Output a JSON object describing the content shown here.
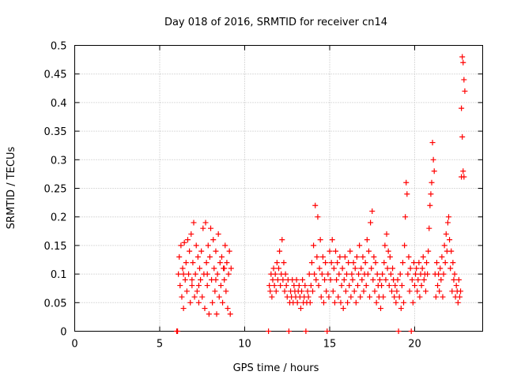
{
  "chart_data": {
    "type": "scatter",
    "title": "Day 018 of 2016, SRMTID for receiver cn14",
    "xlabel": "GPS time / hours",
    "ylabel": "SRMTID / TECUs",
    "xlim": [
      0,
      24
    ],
    "ylim": [
      0,
      0.5
    ],
    "grid": true,
    "marker": "+",
    "series_color": "#ff0000",
    "x_ticks": [
      {
        "value": 0,
        "label": "0"
      },
      {
        "value": 5,
        "label": "5"
      },
      {
        "value": 10,
        "label": "10"
      },
      {
        "value": 15,
        "label": "15"
      },
      {
        "value": 20,
        "label": "20"
      }
    ],
    "y_ticks": [
      {
        "value": 0,
        "label": "0"
      },
      {
        "value": 0.05,
        "label": "0.05"
      },
      {
        "value": 0.1,
        "label": "0.1"
      },
      {
        "value": 0.15,
        "label": "0.15"
      },
      {
        "value": 0.2,
        "label": "0.2"
      },
      {
        "value": 0.25,
        "label": "0.25"
      },
      {
        "value": 0.3,
        "label": "0.3"
      },
      {
        "value": 0.35,
        "label": "0.35"
      },
      {
        "value": 0.4,
        "label": "0.4"
      },
      {
        "value": 0.45,
        "label": "0.45"
      },
      {
        "value": 0.5,
        "label": "0.5"
      }
    ],
    "series": [
      {
        "name": "SRMTID",
        "points": [
          [
            6.0,
            0.0
          ],
          [
            6.05,
            0.0
          ],
          [
            6.1,
            0.1
          ],
          [
            6.15,
            0.13
          ],
          [
            6.2,
            0.08
          ],
          [
            6.25,
            0.15
          ],
          [
            6.3,
            0.06
          ],
          [
            6.35,
            0.11
          ],
          [
            6.4,
            0.04
          ],
          [
            6.45,
            0.155
          ],
          [
            6.5,
            0.09
          ],
          [
            6.55,
            0.12
          ],
          [
            6.6,
            0.07
          ],
          [
            6.65,
            0.16
          ],
          [
            6.7,
            0.1
          ],
          [
            6.75,
            0.14
          ],
          [
            6.8,
            0.05
          ],
          [
            6.85,
            0.17
          ],
          [
            6.9,
            0.08
          ],
          [
            6.95,
            0.12
          ],
          [
            7.0,
            0.19
          ],
          [
            7.05,
            0.06
          ],
          [
            7.1,
            0.1
          ],
          [
            7.15,
            0.15
          ],
          [
            7.2,
            0.07
          ],
          [
            7.25,
            0.13
          ],
          [
            7.3,
            0.05
          ],
          [
            7.35,
            0.11
          ],
          [
            7.4,
            0.09
          ],
          [
            7.45,
            0.14
          ],
          [
            7.5,
            0.06
          ],
          [
            7.55,
            0.18
          ],
          [
            7.6,
            0.1
          ],
          [
            7.65,
            0.04
          ],
          [
            7.7,
            0.19
          ],
          [
            7.75,
            0.12
          ],
          [
            7.8,
            0.08
          ],
          [
            7.85,
            0.15
          ],
          [
            7.9,
            0.03
          ],
          [
            7.95,
            0.13
          ],
          [
            8.0,
            0.18
          ],
          [
            8.05,
            0.09
          ],
          [
            8.1,
            0.05
          ],
          [
            8.15,
            0.16
          ],
          [
            8.2,
            0.11
          ],
          [
            8.25,
            0.07
          ],
          [
            8.3,
            0.14
          ],
          [
            8.35,
            0.03
          ],
          [
            8.4,
            0.1
          ],
          [
            8.45,
            0.17
          ],
          [
            8.5,
            0.06
          ],
          [
            8.55,
            0.12
          ],
          [
            8.6,
            0.08
          ],
          [
            8.65,
            0.13
          ],
          [
            8.7,
            0.05
          ],
          [
            8.75,
            0.11
          ],
          [
            8.8,
            0.09
          ],
          [
            8.85,
            0.15
          ],
          [
            8.9,
            0.07
          ],
          [
            8.95,
            0.12
          ],
          [
            9.0,
            0.04
          ],
          [
            9.05,
            0.1
          ],
          [
            9.1,
            0.14
          ],
          [
            9.15,
            0.03
          ],
          [
            9.2,
            0.11
          ],
          [
            6.4,
            0.1
          ],
          [
            6.9,
            0.09
          ],
          [
            7.3,
            0.08
          ],
          [
            7.8,
            0.1
          ],
          [
            8.3,
            0.09
          ],
          [
            8.8,
            0.11
          ],
          [
            11.4,
            0.0
          ],
          [
            11.45,
            0.08
          ],
          [
            11.5,
            0.07
          ],
          [
            11.55,
            0.1
          ],
          [
            11.6,
            0.06
          ],
          [
            11.65,
            0.09
          ],
          [
            11.7,
            0.11
          ],
          [
            11.75,
            0.08
          ],
          [
            11.8,
            0.1
          ],
          [
            11.85,
            0.07
          ],
          [
            11.9,
            0.12
          ],
          [
            11.95,
            0.09
          ],
          [
            12.0,
            0.11
          ],
          [
            12.05,
            0.14
          ],
          [
            12.1,
            0.08
          ],
          [
            12.15,
            0.1
          ],
          [
            12.2,
            0.16
          ],
          [
            12.25,
            0.09
          ],
          [
            12.3,
            0.12
          ],
          [
            12.35,
            0.07
          ],
          [
            12.4,
            0.1
          ],
          [
            12.45,
            0.08
          ],
          [
            12.5,
            0.06
          ],
          [
            12.55,
            0.09
          ],
          [
            12.6,
            0.0
          ],
          [
            12.65,
            0.05
          ],
          [
            12.7,
            0.07
          ],
          [
            12.75,
            0.06
          ],
          [
            12.8,
            0.09
          ],
          [
            12.85,
            0.05
          ],
          [
            12.9,
            0.08
          ],
          [
            12.95,
            0.07
          ],
          [
            13.0,
            0.06
          ],
          [
            13.05,
            0.09
          ],
          [
            13.1,
            0.05
          ],
          [
            13.15,
            0.07
          ],
          [
            13.2,
            0.08
          ],
          [
            13.25,
            0.06
          ],
          [
            13.3,
            0.04
          ],
          [
            13.35,
            0.07
          ],
          [
            13.4,
            0.09
          ],
          [
            13.45,
            0.05
          ],
          [
            13.5,
            0.06
          ],
          [
            13.55,
            0.08
          ],
          [
            13.6,
            0.0
          ],
          [
            13.65,
            0.05
          ],
          [
            13.7,
            0.07
          ],
          [
            13.75,
            0.06
          ],
          [
            13.8,
            0.1
          ],
          [
            13.85,
            0.05
          ],
          [
            13.9,
            0.08
          ],
          [
            13.95,
            0.12
          ],
          [
            14.0,
            0.07
          ],
          [
            14.05,
            0.15
          ],
          [
            14.1,
            0.1
          ],
          [
            14.15,
            0.22
          ],
          [
            14.2,
            0.09
          ],
          [
            14.25,
            0.13
          ],
          [
            14.3,
            0.2
          ],
          [
            14.35,
            0.08
          ],
          [
            14.4,
            0.11
          ],
          [
            14.45,
            0.16
          ],
          [
            14.5,
            0.06
          ],
          [
            14.55,
            0.1
          ],
          [
            14.6,
            0.13
          ],
          [
            14.65,
            0.05
          ],
          [
            14.7,
            0.09
          ],
          [
            14.75,
            0.12
          ],
          [
            14.8,
            0.07
          ],
          [
            14.85,
            0.0
          ],
          [
            14.9,
            0.1
          ],
          [
            14.95,
            0.06
          ],
          [
            15.0,
            0.14
          ],
          [
            15.05,
            0.09
          ],
          [
            15.1,
            0.12
          ],
          [
            15.15,
            0.16
          ],
          [
            15.2,
            0.07
          ],
          [
            15.25,
            0.11
          ],
          [
            15.3,
            0.05
          ],
          [
            15.35,
            0.14
          ],
          [
            15.4,
            0.09
          ],
          [
            15.45,
            0.12
          ],
          [
            15.5,
            0.06
          ],
          [
            15.55,
            0.1
          ],
          [
            15.6,
            0.13
          ],
          [
            15.65,
            0.05
          ],
          [
            15.7,
            0.08
          ],
          [
            15.75,
            0.11
          ],
          [
            15.8,
            0.04
          ],
          [
            15.85,
            0.09
          ],
          [
            15.9,
            0.13
          ],
          [
            15.95,
            0.07
          ],
          [
            16.0,
            0.1
          ],
          [
            16.05,
            0.05
          ],
          [
            16.1,
            0.12
          ],
          [
            16.15,
            0.08
          ],
          [
            16.2,
            0.14
          ],
          [
            16.25,
            0.06
          ],
          [
            16.3,
            0.1
          ],
          [
            16.35,
            0.09
          ],
          [
            16.4,
            0.12
          ],
          [
            16.45,
            0.07
          ],
          [
            16.5,
            0.11
          ],
          [
            16.55,
            0.05
          ],
          [
            16.6,
            0.13
          ],
          [
            16.65,
            0.08
          ],
          [
            16.7,
            0.1
          ],
          [
            16.75,
            0.15
          ],
          [
            16.8,
            0.06
          ],
          [
            16.85,
            0.11
          ],
          [
            16.9,
            0.09
          ],
          [
            16.95,
            0.13
          ],
          [
            17.0,
            0.07
          ],
          [
            17.05,
            0.1
          ],
          [
            17.1,
            0.12
          ],
          [
            17.15,
            0.08
          ],
          [
            17.2,
            0.16
          ],
          [
            17.25,
            0.1
          ],
          [
            17.3,
            0.14
          ],
          [
            17.35,
            0.06
          ],
          [
            17.4,
            0.19
          ],
          [
            17.45,
            0.11
          ],
          [
            17.5,
            0.21
          ],
          [
            17.55,
            0.09
          ],
          [
            17.6,
            0.13
          ],
          [
            17.65,
            0.07
          ],
          [
            17.7,
            0.12
          ],
          [
            17.75,
            0.05
          ],
          [
            17.8,
            0.1
          ],
          [
            17.85,
            0.08
          ],
          [
            17.9,
            0.06
          ],
          [
            17.95,
            0.09
          ],
          [
            18.0,
            0.04
          ],
          [
            18.05,
            0.08
          ],
          [
            18.1,
            0.1
          ],
          [
            18.15,
            0.06
          ],
          [
            18.2,
            0.12
          ],
          [
            18.25,
            0.15
          ],
          [
            18.3,
            0.09
          ],
          [
            18.35,
            0.17
          ],
          [
            18.4,
            0.11
          ],
          [
            18.45,
            0.14
          ],
          [
            18.5,
            0.08
          ],
          [
            18.55,
            0.13
          ],
          [
            18.6,
            0.1
          ],
          [
            18.65,
            0.07
          ],
          [
            18.7,
            0.11
          ],
          [
            18.75,
            0.09
          ],
          [
            18.8,
            0.06
          ],
          [
            18.85,
            0.08
          ],
          [
            18.9,
            0.05
          ],
          [
            18.95,
            0.07
          ],
          [
            19.0,
            0.09
          ],
          [
            19.05,
            0.0
          ],
          [
            19.1,
            0.06
          ],
          [
            19.15,
            0.1
          ],
          [
            19.2,
            0.04
          ],
          [
            19.25,
            0.08
          ],
          [
            19.3,
            0.12
          ],
          [
            19.35,
            0.05
          ],
          [
            19.4,
            0.15
          ],
          [
            19.45,
            0.2
          ],
          [
            19.5,
            0.26
          ],
          [
            19.55,
            0.24
          ],
          [
            19.6,
            0.1
          ],
          [
            19.65,
            0.13
          ],
          [
            19.7,
            0.07
          ],
          [
            19.75,
            0.11
          ],
          [
            19.8,
            0.0
          ],
          [
            19.85,
            0.09
          ],
          [
            19.9,
            0.05
          ],
          [
            19.95,
            0.12
          ],
          [
            20.0,
            0.08
          ],
          [
            20.05,
            0.1
          ],
          [
            20.1,
            0.11
          ],
          [
            20.15,
            0.07
          ],
          [
            20.2,
            0.09
          ],
          [
            20.25,
            0.12
          ],
          [
            20.3,
            0.06
          ],
          [
            20.35,
            0.1
          ],
          [
            20.4,
            0.08
          ],
          [
            20.45,
            0.11
          ],
          [
            20.5,
            0.13
          ],
          [
            20.55,
            0.09
          ],
          [
            20.6,
            0.1
          ],
          [
            20.65,
            0.07
          ],
          [
            20.7,
            0.12
          ],
          [
            20.75,
            0.1
          ],
          [
            20.8,
            0.14
          ],
          [
            20.85,
            0.18
          ],
          [
            20.9,
            0.22
          ],
          [
            20.95,
            0.24
          ],
          [
            21.0,
            0.26
          ],
          [
            21.05,
            0.33
          ],
          [
            21.1,
            0.3
          ],
          [
            21.15,
            0.28
          ],
          [
            21.2,
            0.1
          ],
          [
            21.25,
            0.06
          ],
          [
            21.3,
            0.12
          ],
          [
            21.35,
            0.08
          ],
          [
            21.4,
            0.1
          ],
          [
            21.45,
            0.07
          ],
          [
            21.5,
            0.11
          ],
          [
            21.55,
            0.09
          ],
          [
            21.6,
            0.13
          ],
          [
            21.65,
            0.06
          ],
          [
            21.7,
            0.1
          ],
          [
            21.75,
            0.15
          ],
          [
            21.8,
            0.12
          ],
          [
            21.85,
            0.17
          ],
          [
            21.9,
            0.14
          ],
          [
            21.95,
            0.19
          ],
          [
            22.0,
            0.2
          ],
          [
            22.05,
            0.16
          ],
          [
            22.1,
            0.11
          ],
          [
            22.15,
            0.14
          ],
          [
            22.2,
            0.07
          ],
          [
            22.25,
            0.12
          ],
          [
            22.3,
            0.09
          ],
          [
            22.35,
            0.1
          ],
          [
            22.4,
            0.06
          ],
          [
            22.45,
            0.08
          ],
          [
            22.5,
            0.07
          ],
          [
            22.55,
            0.05
          ],
          [
            22.6,
            0.09
          ],
          [
            22.65,
            0.06
          ],
          [
            22.7,
            0.07
          ],
          [
            22.75,
            0.27
          ],
          [
            22.8,
            0.48
          ],
          [
            22.85,
            0.47
          ],
          [
            22.9,
            0.44
          ],
          [
            22.95,
            0.42
          ],
          [
            22.75,
            0.39
          ],
          [
            22.8,
            0.34
          ],
          [
            22.85,
            0.28
          ],
          [
            22.9,
            0.27
          ]
        ]
      }
    ]
  }
}
